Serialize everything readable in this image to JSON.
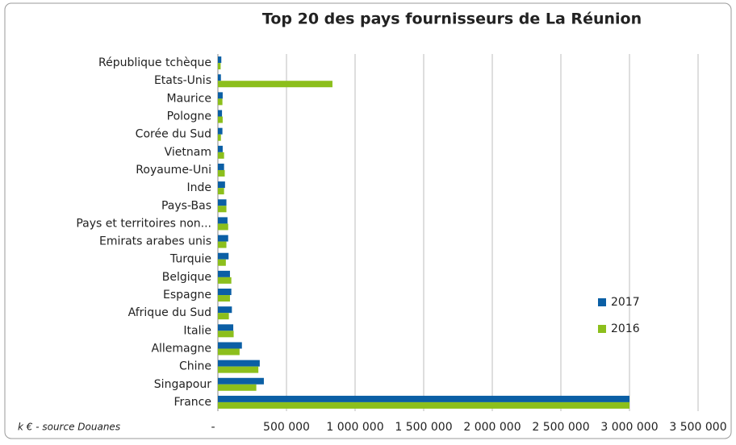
{
  "chart_data": {
    "type": "hbar",
    "title": "Top 20 des pays fournisseurs de La Réunion",
    "note": "k € - source Douanes",
    "categories": [
      "République tchèque",
      "Etats-Unis",
      "Maurice",
      "Pologne",
      "Corée du Sud",
      "Vietnam",
      "Royaume-Uni",
      "Inde",
      "Pays-Bas",
      "Pays et territoires non...",
      "Emirats arabes unis",
      "Turquie",
      "Belgique",
      "Espagne",
      "Afrique du Sud",
      "Italie",
      "Allemagne",
      "Chine",
      "Singapour",
      "France"
    ],
    "series": [
      {
        "name": "2017",
        "color": "#0b5fa5",
        "values": [
          25000,
          22000,
          35000,
          30000,
          33000,
          35000,
          45000,
          52000,
          62000,
          70000,
          75000,
          78000,
          88000,
          98000,
          102000,
          112000,
          175000,
          305000,
          335000,
          3000000
        ]
      },
      {
        "name": "2016",
        "color": "#8cbf1c",
        "values": [
          20000,
          835000,
          33000,
          35000,
          22000,
          45000,
          50000,
          45000,
          62000,
          75000,
          62000,
          58000,
          98000,
          88000,
          80000,
          115000,
          158000,
          295000,
          280000,
          3000000
        ]
      }
    ],
    "xlim": [
      0,
      3500000
    ],
    "xticks": [
      {
        "value": 0,
        "label": "-"
      },
      {
        "value": 500000,
        "label": "500 000"
      },
      {
        "value": 1000000,
        "label": "1 000 000"
      },
      {
        "value": 1500000,
        "label": "1 500 000"
      },
      {
        "value": 2000000,
        "label": "2 000 000"
      },
      {
        "value": 2500000,
        "label": "2 500 000"
      },
      {
        "value": 3000000,
        "label": "3 000 000"
      },
      {
        "value": 3500000,
        "label": "3 500 000"
      }
    ],
    "grid": true,
    "legend": "right"
  }
}
